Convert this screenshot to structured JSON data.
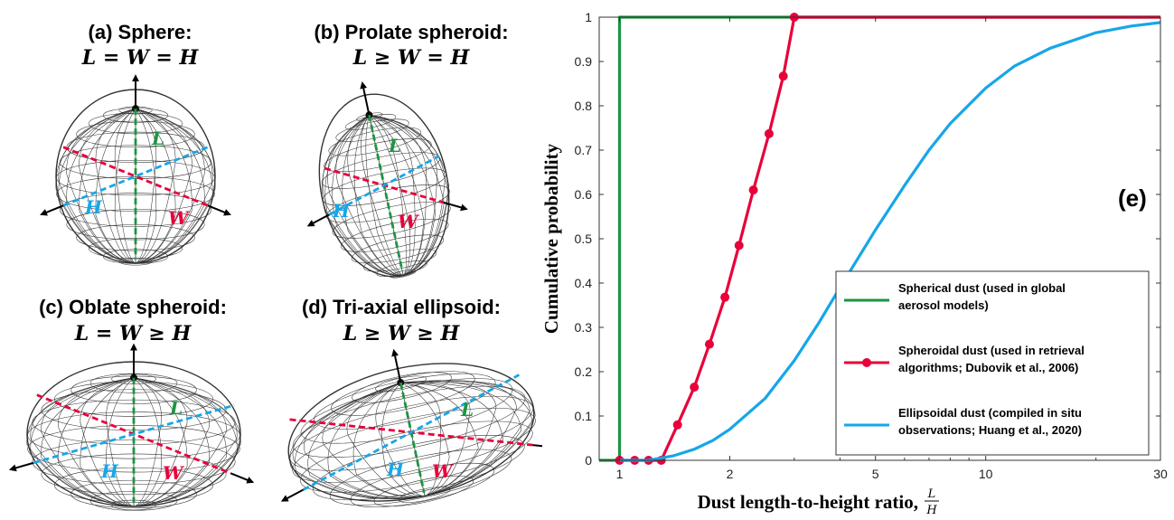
{
  "panels": [
    {
      "title": "(a) Sphere:",
      "equation": "L = W = H"
    },
    {
      "title": "(b) Prolate spheroid:",
      "equation": "L ≥ W = H"
    },
    {
      "title": "(c) Oblate spheroid:",
      "equation": "L = W ≥ H"
    },
    {
      "title": "(d) Tri-axial ellipsoid:",
      "equation": "L ≥ W ≥ H"
    }
  ],
  "axis_letters": {
    "l": "L",
    "w": "W",
    "h": "H"
  },
  "colors": {
    "green": "#1a9641",
    "red": "#e8003a",
    "blue": "#16a6e8",
    "mesh": "#333333"
  },
  "chart_data": {
    "type": "line",
    "panel_label": "(e)",
    "xlabel": "Dust length-to-height ratio, L/H",
    "xlabel_text": "Dust length-to-height ratio,",
    "xlabel_num": "L",
    "xlabel_den": "H",
    "ylabel": "Cumulative probability",
    "xscale": "log",
    "xlim": [
      0.88,
      30
    ],
    "ylim": [
      0,
      1
    ],
    "xticks": [
      1,
      2,
      5,
      10,
      30
    ],
    "yticks": [
      0,
      0.1,
      0.2,
      0.3,
      0.4,
      0.5,
      0.6,
      0.7,
      0.8,
      0.9,
      1
    ],
    "legend_position": "lower-right",
    "series": [
      {
        "name": "Spherical dust (used in global aerosol models)",
        "legend_lines": [
          "Spherical dust (used in global",
          "aerosol models)"
        ],
        "color": "#1a9641",
        "x": [
          0.88,
          1,
          1,
          30
        ],
        "y": [
          0,
          0,
          1,
          1
        ],
        "markers": false
      },
      {
        "name": "Spheroidal dust (used in retrieval algorithms; Dubovik et al., 2006)",
        "legend_lines": [
          "Spheroidal dust (used in retrieval",
          "algorithms; Dubovik et al., 2006)"
        ],
        "color": "#e8003a",
        "x": [
          1.0,
          1.1,
          1.2,
          1.3,
          1.44,
          1.6,
          1.76,
          1.94,
          2.12,
          2.32,
          2.56,
          2.8,
          3.0
        ],
        "y": [
          0,
          0,
          0,
          0,
          0.08,
          0.165,
          0.262,
          0.368,
          0.485,
          0.61,
          0.737,
          0.867,
          1.0
        ],
        "line_extension": [
          [
            3.0,
            1.0
          ],
          [
            30,
            1.0
          ]
        ],
        "markers": true
      },
      {
        "name": "Ellipsoidal dust (compiled in situ observations; Huang et al., 2020)",
        "legend_lines": [
          "Ellipsoidal dust (compiled in situ",
          "observations; Huang et al., 2020)"
        ],
        "color": "#16a6e8",
        "x": [
          1.0,
          1.2,
          1.4,
          1.6,
          1.8,
          2.0,
          2.5,
          3.0,
          3.5,
          4.0,
          5.0,
          6.0,
          7.0,
          8.0,
          10.0,
          12.0,
          15.0,
          20.0,
          25.0,
          30.0
        ],
        "y": [
          0,
          0,
          0.01,
          0.025,
          0.045,
          0.07,
          0.14,
          0.225,
          0.31,
          0.39,
          0.52,
          0.62,
          0.7,
          0.76,
          0.84,
          0.89,
          0.93,
          0.965,
          0.98,
          0.988
        ],
        "markers": false
      }
    ]
  }
}
